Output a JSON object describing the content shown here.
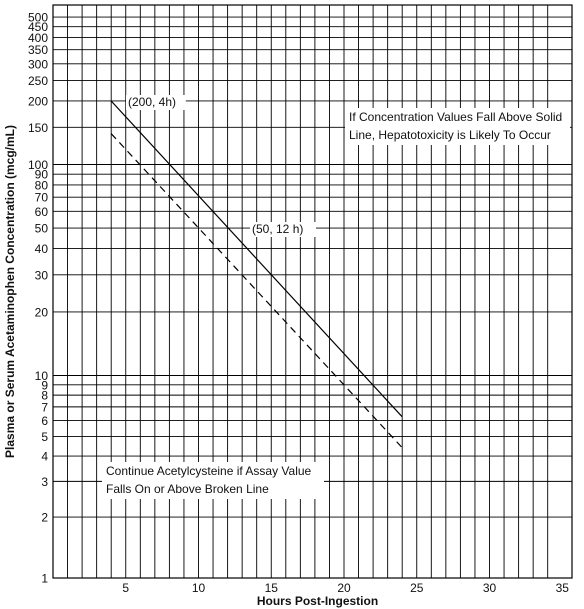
{
  "chart_data": {
    "type": "line",
    "title": "",
    "xlabel": "Hours Post-Ingestion",
    "ylabel": "Plasma or Serum Acetaminophen Concentration (mcg/mL)",
    "xlim": [
      0,
      35
    ],
    "ylim": [
      1,
      500
    ],
    "y_scale": "log",
    "grid": true,
    "x_ticks": [
      5,
      10,
      15,
      20,
      25,
      30,
      35
    ],
    "y_ticks": [
      1,
      2,
      3,
      4,
      5,
      6,
      7,
      8,
      9,
      10,
      20,
      30,
      40,
      50,
      60,
      70,
      80,
      90,
      100,
      150,
      200,
      250,
      300,
      350,
      400,
      450,
      500
    ],
    "series": [
      {
        "style": "solid",
        "color": "#000000",
        "x": [
          4,
          24
        ],
        "y": [
          200,
          6.25
        ]
      },
      {
        "style": "dashed",
        "color": "#000000",
        "x": [
          4,
          24
        ],
        "y": [
          140,
          4.4
        ]
      }
    ],
    "annotations": [
      {
        "text": "(200, 4h)",
        "x": 4,
        "y": 200
      },
      {
        "text": "(50, 12 h)",
        "x": 12,
        "y": 50
      },
      {
        "text_lines": [
          "If Concentration Values Fall Above Solid",
          "Line, Hepatotoxicity is Likely To Occur"
        ]
      },
      {
        "text_lines": [
          "Continue Acetylcysteine if Assay Value",
          "Falls On or Above Broken Line"
        ]
      }
    ]
  }
}
